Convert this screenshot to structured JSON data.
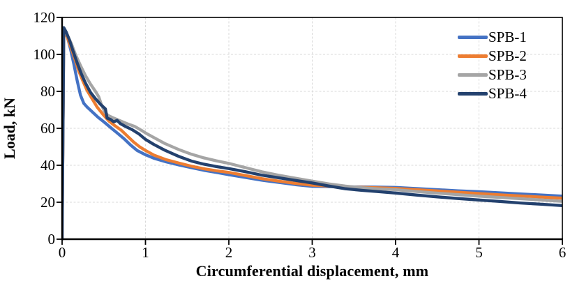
{
  "chart_data": {
    "type": "line",
    "title": "",
    "xlabel": "Circumferential displacement, mm",
    "ylabel": "Load, kN",
    "xlim": [
      0,
      6
    ],
    "ylim": [
      0,
      120
    ],
    "xticks": [
      0,
      1,
      2,
      3,
      4,
      5,
      6
    ],
    "yticks": [
      0,
      20,
      40,
      60,
      80,
      100,
      120
    ],
    "grid": true,
    "gridline_color": "#D9D9D9",
    "axis_color": "#000000",
    "legend_position": "inside-top-right",
    "series": [
      {
        "name": "SPB-1",
        "color": "#4472C4",
        "points": [
          [
            0,
            0
          ],
          [
            0.02,
            114
          ],
          [
            0.06,
            110
          ],
          [
            0.1,
            103
          ],
          [
            0.14,
            95
          ],
          [
            0.18,
            86
          ],
          [
            0.22,
            78
          ],
          [
            0.26,
            73.5
          ],
          [
            0.3,
            71.5
          ],
          [
            0.36,
            69
          ],
          [
            0.43,
            66
          ],
          [
            0.5,
            63.5
          ],
          [
            0.58,
            60.5
          ],
          [
            0.66,
            57.5
          ],
          [
            0.74,
            54.5
          ],
          [
            0.82,
            51
          ],
          [
            0.9,
            48
          ],
          [
            1.0,
            45.7
          ],
          [
            1.1,
            43.8
          ],
          [
            1.25,
            41.8
          ],
          [
            1.4,
            40.2
          ],
          [
            1.55,
            38.7
          ],
          [
            1.7,
            37.3
          ],
          [
            1.85,
            36.1
          ],
          [
            2.0,
            34.9
          ],
          [
            2.2,
            33.4
          ],
          [
            2.4,
            31.9
          ],
          [
            2.6,
            30.7
          ],
          [
            2.8,
            29.5
          ],
          [
            3.0,
            28.6
          ],
          [
            3.25,
            28.4
          ],
          [
            3.5,
            28.3
          ],
          [
            3.75,
            28.2
          ],
          [
            4.0,
            28.0
          ],
          [
            4.25,
            27.4
          ],
          [
            4.5,
            26.8
          ],
          [
            4.75,
            26.2
          ],
          [
            5.0,
            25.7
          ],
          [
            5.25,
            25.1
          ],
          [
            5.5,
            24.5
          ],
          [
            5.75,
            23.9
          ],
          [
            6.0,
            23.3
          ]
        ]
      },
      {
        "name": "SPB-2",
        "color": "#ED7D31",
        "points": [
          [
            0,
            0
          ],
          [
            0.02,
            113
          ],
          [
            0.06,
            109.5
          ],
          [
            0.1,
            104.5
          ],
          [
            0.15,
            98
          ],
          [
            0.2,
            91
          ],
          [
            0.25,
            85.5
          ],
          [
            0.3,
            80.5
          ],
          [
            0.36,
            76
          ],
          [
            0.42,
            71.5
          ],
          [
            0.49,
            67.5
          ],
          [
            0.56,
            64
          ],
          [
            0.63,
            61.5
          ],
          [
            0.71,
            59
          ],
          [
            0.79,
            55.5
          ],
          [
            0.86,
            52.5
          ],
          [
            0.93,
            50
          ],
          [
            1.0,
            48
          ],
          [
            1.1,
            45.5
          ],
          [
            1.25,
            43
          ],
          [
            1.4,
            41.2
          ],
          [
            1.55,
            39.5
          ],
          [
            1.7,
            38.1
          ],
          [
            1.85,
            37
          ],
          [
            2.0,
            36.1
          ],
          [
            2.2,
            34.4
          ],
          [
            2.4,
            32.7
          ],
          [
            2.6,
            31.4
          ],
          [
            2.8,
            30.2
          ],
          [
            3.0,
            29.2
          ],
          [
            3.25,
            28.6
          ],
          [
            3.5,
            28.2
          ],
          [
            3.75,
            27.9
          ],
          [
            4.0,
            27.5
          ],
          [
            4.25,
            26.8
          ],
          [
            4.5,
            26.1
          ],
          [
            4.75,
            25.4
          ],
          [
            5.0,
            24.7
          ],
          [
            5.25,
            24.0
          ],
          [
            5.5,
            23.4
          ],
          [
            5.75,
            22.8
          ],
          [
            6.0,
            22.2
          ]
        ]
      },
      {
        "name": "SPB-3",
        "color": "#A5A5A5",
        "points": [
          [
            0,
            0
          ],
          [
            0.02,
            113
          ],
          [
            0.06,
            110.5
          ],
          [
            0.11,
            106
          ],
          [
            0.16,
            100
          ],
          [
            0.22,
            94
          ],
          [
            0.28,
            88.5
          ],
          [
            0.34,
            84
          ],
          [
            0.4,
            80
          ],
          [
            0.44,
            77
          ],
          [
            0.47,
            73
          ],
          [
            0.51,
            69
          ],
          [
            0.55,
            67
          ],
          [
            0.62,
            65.5
          ],
          [
            0.7,
            64
          ],
          [
            0.78,
            62.5
          ],
          [
            0.87,
            61
          ],
          [
            0.95,
            59
          ],
          [
            1.0,
            57.5
          ],
          [
            1.1,
            55
          ],
          [
            1.23,
            51.8
          ],
          [
            1.4,
            48.5
          ],
          [
            1.55,
            46
          ],
          [
            1.7,
            44
          ],
          [
            1.85,
            42.4
          ],
          [
            2.0,
            41
          ],
          [
            2.2,
            38.7
          ],
          [
            2.4,
            36.4
          ],
          [
            2.6,
            34.6
          ],
          [
            2.8,
            33
          ],
          [
            3.0,
            31.4
          ],
          [
            3.2,
            29.9
          ],
          [
            3.4,
            28.7
          ],
          [
            3.6,
            27.8
          ],
          [
            3.8,
            27.2
          ],
          [
            4.0,
            26.8
          ],
          [
            4.25,
            25.8
          ],
          [
            4.5,
            24.9
          ],
          [
            4.75,
            24.1
          ],
          [
            5.0,
            23.3
          ],
          [
            5.25,
            22.6
          ],
          [
            5.5,
            21.9
          ],
          [
            5.75,
            21.2
          ],
          [
            6.0,
            20.5
          ]
        ]
      },
      {
        "name": "SPB-4",
        "color": "#23416E",
        "points": [
          [
            0,
            0
          ],
          [
            0.02,
            114.5
          ],
          [
            0.05,
            112
          ],
          [
            0.09,
            107.5
          ],
          [
            0.13,
            102
          ],
          [
            0.18,
            95.5
          ],
          [
            0.23,
            89.5
          ],
          [
            0.28,
            84.5
          ],
          [
            0.34,
            79.5
          ],
          [
            0.4,
            76
          ],
          [
            0.46,
            73
          ],
          [
            0.52,
            70.5
          ],
          [
            0.54,
            65.5
          ],
          [
            0.58,
            64.8
          ],
          [
            0.62,
            63.5
          ],
          [
            0.66,
            64.3
          ],
          [
            0.7,
            62.5
          ],
          [
            0.76,
            61
          ],
          [
            0.84,
            59.3
          ],
          [
            0.92,
            57
          ],
          [
            1.0,
            54
          ],
          [
            1.1,
            51.3
          ],
          [
            1.23,
            48.2
          ],
          [
            1.4,
            44.8
          ],
          [
            1.55,
            42.3
          ],
          [
            1.7,
            40.6
          ],
          [
            1.85,
            39.3
          ],
          [
            2.0,
            38.2
          ],
          [
            2.2,
            36.5
          ],
          [
            2.4,
            34.6
          ],
          [
            2.6,
            33.2
          ],
          [
            2.8,
            31.8
          ],
          [
            3.0,
            30.4
          ],
          [
            3.2,
            28.8
          ],
          [
            3.4,
            27.3
          ],
          [
            3.6,
            26.4
          ],
          [
            3.8,
            25.7
          ],
          [
            4.0,
            25.0
          ],
          [
            4.25,
            23.9
          ],
          [
            4.5,
            22.9
          ],
          [
            4.75,
            22.0
          ],
          [
            5.0,
            21.2
          ],
          [
            5.25,
            20.4
          ],
          [
            5.5,
            19.6
          ],
          [
            5.75,
            18.9
          ],
          [
            6.0,
            18.2
          ]
        ]
      }
    ]
  },
  "ytick_labels": [
    "0",
    "20",
    "40",
    "60",
    "80",
    "100",
    "120"
  ],
  "xtick_labels": [
    "0",
    "1",
    "2",
    "3",
    "4",
    "5",
    "6"
  ]
}
